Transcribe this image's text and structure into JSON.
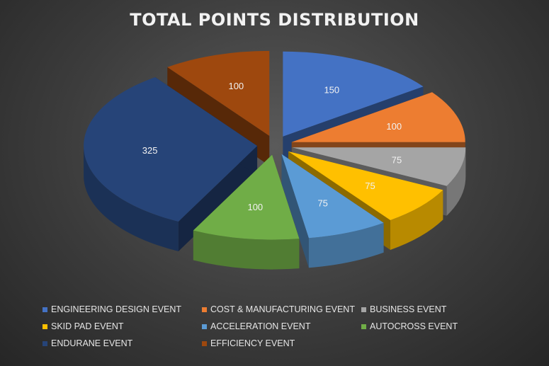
{
  "chart_data": {
    "type": "pie",
    "title": "TOTAL POINTS DISTRIBUTION",
    "categories": [
      "ENGINEERING DESIGN EVENT",
      "COST & MANUFACTURING EVENT",
      "BUSINESS EVENT",
      "SKID PAD EVENT",
      "ACCELERATION EVENT",
      "AUTOCROSS EVENT",
      "ENDURANE EVENT",
      "EFFICIENCY EVENT"
    ],
    "values": [
      150,
      100,
      75,
      75,
      75,
      100,
      325,
      100
    ],
    "colors": [
      "#4472c4",
      "#ed7d31",
      "#a5a5a5",
      "#ffc000",
      "#5b9bd5",
      "#70ad47",
      "#264478",
      "#9e480e"
    ],
    "legend_position": "bottom",
    "style": "3d-exploded"
  }
}
